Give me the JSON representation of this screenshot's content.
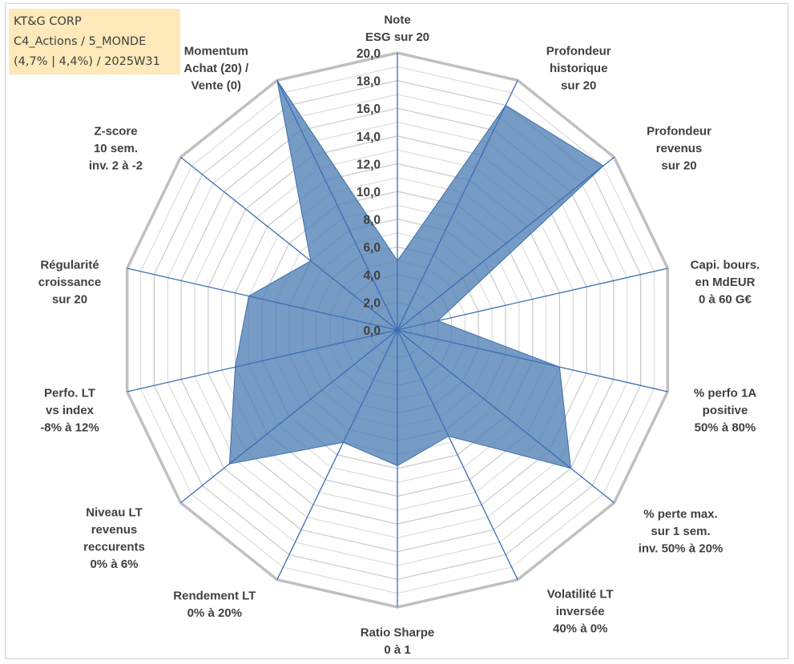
{
  "title": {
    "line1": "KT&G CORP",
    "line2": "C4_Actions / 5_MONDE",
    "line3": "(4,7% | 4,4%) / 2025W31"
  },
  "chart_data": {
    "type": "radar",
    "rmin": 0,
    "rmax": 20,
    "tick_labels": [
      "0,0",
      "2,0",
      "4,0",
      "6,0",
      "8,0",
      "10,0",
      "12,0",
      "14,0",
      "16,0",
      "18,0",
      "20,0"
    ],
    "series_color": "#4f7fb5",
    "grid": true,
    "axes": [
      {
        "label": [
          "Note",
          "ESG sur 20"
        ],
        "value": 5.0
      },
      {
        "label": [
          "Profondeur",
          "historique",
          "sur 20"
        ],
        "value": 18.0
      },
      {
        "label": [
          "Profondeur",
          "revenus",
          "sur 20"
        ],
        "value": 19.0
      },
      {
        "label": [
          "Capi. bours.",
          "en MdEUR",
          "0 à 60 G€"
        ],
        "value": 3.0
      },
      {
        "label": [
          "% perfo 1A",
          "positive",
          "50% à 80%"
        ],
        "value": 12.0
      },
      {
        "label": [
          "% perte max.",
          "sur 1 sem.",
          "inv. 50% à 20%"
        ],
        "value": 16.0
      },
      {
        "label": [
          "Volatilité LT",
          "inversée",
          "40% à 0%"
        ],
        "value": 8.5
      },
      {
        "label": [
          "Ratio Sharpe",
          "0 à 1"
        ],
        "value": 9.8
      },
      {
        "label": [
          "Rendement LT",
          "0% à 20%"
        ],
        "value": 9.0
      },
      {
        "label": [
          "Niveau LT",
          "revenus",
          "reccurents",
          "0% à 6%"
        ],
        "value": 15.5
      },
      {
        "label": [
          "Perfo. LT",
          "vs index",
          "-8% à 12%"
        ],
        "value": 12.0
      },
      {
        "label": [
          "Régularité",
          "croissance",
          "sur 20"
        ],
        "value": 11.0
      },
      {
        "label": [
          "Z-score",
          "10 sem.",
          "inv. 2 à -2"
        ],
        "value": 8.0
      },
      {
        "label": [
          "Momentum",
          "Achat (20) /",
          "Vente (0)"
        ],
        "value": 20.0
      }
    ]
  }
}
